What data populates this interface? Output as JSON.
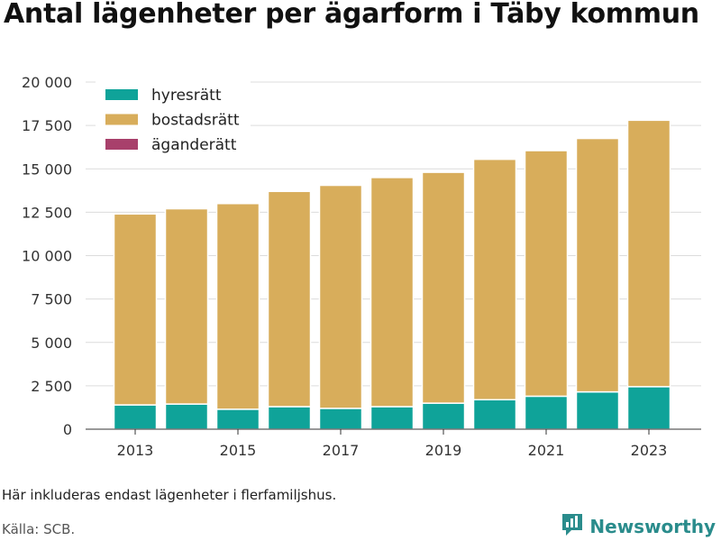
{
  "title": "Antal lägenheter per ägarform i Täby kommun",
  "footnote": "Här inkluderas endast lägenheter i flerfamiljshus.",
  "source": "Källa: SCB.",
  "brand": {
    "name": "Newsworthy",
    "icon": "newsworthy-logo-icon",
    "color": "#2a8c8c"
  },
  "chart_data": {
    "type": "bar",
    "stacked": true,
    "title": "Antal lägenheter per ägarform i Täby kommun",
    "xlabel": "",
    "ylabel": "",
    "categories": [
      "2013",
      "2014",
      "2015",
      "2016",
      "2017",
      "2018",
      "2019",
      "2020",
      "2021",
      "2022",
      "2023"
    ],
    "x_tick_labels": [
      "2013",
      "2015",
      "2017",
      "2019",
      "2021",
      "2023"
    ],
    "y_ticks": [
      0,
      2500,
      5000,
      7500,
      10000,
      12500,
      15000,
      17500,
      20000
    ],
    "y_tick_labels": [
      "0",
      "2 500",
      "5 000",
      "7 500",
      "10 000",
      "12 500",
      "15 000",
      "17 500",
      "20 000"
    ],
    "ylim": [
      0,
      20000
    ],
    "grid": true,
    "legend_position": "top-left",
    "series": [
      {
        "name": "hyresrätt",
        "color": "#0fa399",
        "values": [
          1400,
          1450,
          1150,
          1300,
          1200,
          1300,
          1500,
          1700,
          1900,
          2150,
          2450
        ]
      },
      {
        "name": "bostadsrätt",
        "color": "#d8ad5b",
        "values": [
          11000,
          11250,
          11850,
          12400,
          12850,
          13200,
          13300,
          13850,
          14150,
          14600,
          15350
        ]
      },
      {
        "name": "äganderätt",
        "color": "#a8406b",
        "values": [
          0,
          0,
          0,
          0,
          0,
          0,
          0,
          0,
          0,
          0,
          0
        ]
      }
    ]
  }
}
